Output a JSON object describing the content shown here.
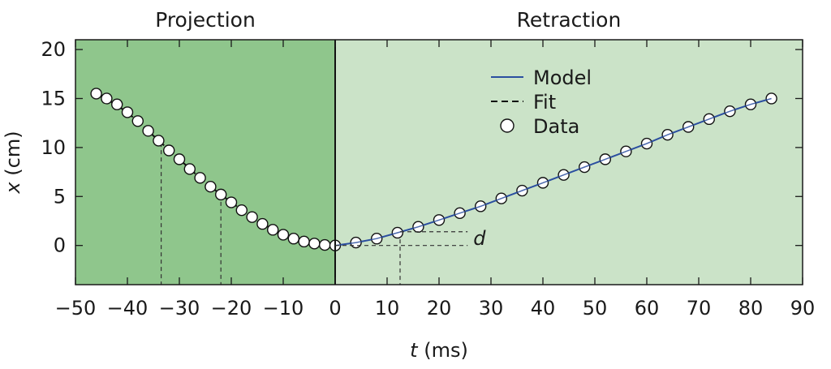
{
  "chart_data": {
    "type": "scatter",
    "title": "",
    "xlabel": "t (ms)",
    "xlabel_var": "t",
    "xlabel_unit": " (ms)",
    "ylabel": "x (cm)",
    "ylabel_var": "x",
    "ylabel_unit": " (cm)",
    "xlim": [
      -50,
      90
    ],
    "ylim": [
      -4,
      21
    ],
    "xticks": [
      -50,
      -40,
      -30,
      -20,
      -10,
      0,
      10,
      20,
      30,
      40,
      50,
      60,
      70,
      80,
      90
    ],
    "xtick_labels": [
      "−50",
      "−40",
      "−30",
      "−20",
      "−10",
      "0",
      "10",
      "20",
      "30",
      "40",
      "50",
      "60",
      "70",
      "80",
      "90"
    ],
    "yticks": [
      0,
      5,
      10,
      15,
      20
    ],
    "ytick_labels": [
      "0",
      "5",
      "10",
      "15",
      "20"
    ],
    "regions": [
      {
        "label": "Projection",
        "x_range": [
          -50,
          0
        ],
        "color": "#8fc68c"
      },
      {
        "label": "Retraction",
        "x_range": [
          0,
          90
        ],
        "color": "#cbe3c8"
      }
    ],
    "legend": {
      "position": "top-center",
      "entries": [
        "Model",
        "Fit",
        "Data"
      ]
    },
    "series": [
      {
        "name": "Data",
        "style": "open-circle",
        "x": [
          -46,
          -44,
          -42,
          -40,
          -38,
          -36,
          -34,
          -32,
          -30,
          -28,
          -26,
          -24,
          -22,
          -20,
          -18,
          -16,
          -14,
          -12,
          -10,
          -8,
          -6,
          -4,
          -2,
          0,
          4,
          8,
          12,
          16,
          20,
          24,
          28,
          32,
          36,
          40,
          44,
          48,
          52,
          56,
          60,
          64,
          68,
          72,
          76,
          80,
          84
        ],
        "y": [
          15.5,
          15.0,
          14.4,
          13.6,
          12.7,
          11.7,
          10.7,
          9.7,
          8.8,
          7.8,
          6.9,
          6.0,
          5.2,
          4.4,
          3.6,
          2.9,
          2.2,
          1.6,
          1.1,
          0.7,
          0.4,
          0.2,
          0.05,
          0.0,
          0.3,
          0.7,
          1.3,
          1.9,
          2.6,
          3.3,
          4.0,
          4.8,
          5.6,
          6.4,
          7.2,
          8.0,
          8.8,
          9.6,
          10.4,
          11.3,
          12.1,
          12.9,
          13.7,
          14.4,
          15.0
        ]
      },
      {
        "name": "Fit",
        "style": "dashed",
        "x": [
          -45,
          -40,
          -35,
          -30,
          -25,
          -20,
          -15,
          -10,
          -5,
          0
        ],
        "y": [
          15.3,
          13.6,
          11.2,
          8.8,
          6.4,
          4.4,
          2.5,
          1.1,
          0.3,
          0.0
        ]
      },
      {
        "name": "Model",
        "style": "solid",
        "color": "#2b4fa0",
        "x": [
          0,
          4,
          8,
          12,
          16,
          20,
          24,
          28,
          32,
          36,
          40,
          44,
          48,
          52,
          56,
          60,
          64,
          68,
          72,
          76,
          80,
          84
        ],
        "y": [
          0.0,
          0.3,
          0.7,
          1.3,
          1.9,
          2.6,
          3.3,
          4.0,
          4.8,
          5.6,
          6.4,
          7.2,
          8.0,
          8.8,
          9.6,
          10.4,
          11.3,
          12.1,
          12.9,
          13.7,
          14.4,
          15.0
        ]
      }
    ],
    "annotations": [
      {
        "label": "d",
        "x": 25.5,
        "y_range": [
          0,
          1.4
        ]
      }
    ],
    "guide_lines_x": [
      -33.5,
      -22,
      12.5
    ]
  }
}
